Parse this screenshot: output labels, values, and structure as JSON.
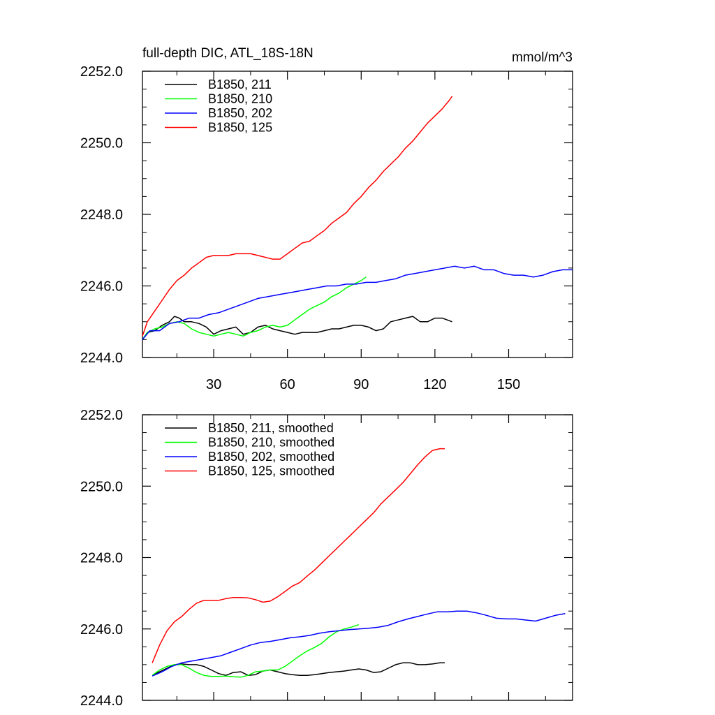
{
  "chart_data": [
    {
      "type": "line",
      "title": "full-depth DIC, ATL_18S-18N",
      "units": "mmol/m^3",
      "xlim": [
        1,
        176
      ],
      "ylim": [
        2244.0,
        2252.0
      ],
      "xticks": [
        30,
        60,
        90,
        120,
        150
      ],
      "xtick_labels": [
        "30",
        "60",
        "90",
        "120",
        "150"
      ],
      "yticks": [
        2244.0,
        2246.0,
        2248.0,
        2250.0,
        2252.0
      ],
      "ytick_labels": [
        "2244.0",
        "2246.0",
        "2248.0",
        "2250.0",
        "2252.0"
      ],
      "legend_position": "top-left",
      "series": [
        {
          "name": "B1850, 211",
          "color": "#000000",
          "x": [
            1,
            3,
            6,
            9,
            12,
            14,
            16,
            18,
            21,
            24,
            27,
            30,
            33,
            36,
            39,
            42,
            45,
            48,
            51,
            54,
            57,
            60,
            63,
            66,
            69,
            72,
            75,
            78,
            81,
            84,
            87,
            90,
            93,
            96,
            99,
            102,
            105,
            108,
            111,
            114,
            117,
            120,
            123,
            125,
            127
          ],
          "y": [
            2244.5,
            2244.7,
            2244.75,
            2244.9,
            2245.0,
            2245.15,
            2245.1,
            2245.0,
            2245.0,
            2244.95,
            2244.85,
            2244.65,
            2244.75,
            2244.8,
            2244.85,
            2244.65,
            2244.7,
            2244.85,
            2244.9,
            2244.8,
            2244.75,
            2244.7,
            2244.65,
            2244.7,
            2244.7,
            2244.7,
            2244.75,
            2244.8,
            2244.8,
            2244.85,
            2244.9,
            2244.9,
            2244.85,
            2244.75,
            2244.8,
            2245.0,
            2245.05,
            2245.1,
            2245.15,
            2245.0,
            2245.0,
            2245.1,
            2245.1,
            2245.05,
            2245.0
          ]
        },
        {
          "name": "B1850, 210",
          "color": "#00ff00",
          "x": [
            1,
            3,
            6,
            9,
            12,
            15,
            18,
            21,
            24,
            27,
            30,
            33,
            36,
            39,
            42,
            45,
            48,
            51,
            54,
            57,
            60,
            63,
            66,
            69,
            72,
            75,
            78,
            81,
            84,
            87,
            90,
            92
          ],
          "y": [
            2244.5,
            2244.7,
            2244.8,
            2244.85,
            2244.95,
            2245.0,
            2244.95,
            2244.8,
            2244.7,
            2244.65,
            2244.6,
            2244.65,
            2244.7,
            2244.65,
            2244.6,
            2244.7,
            2244.75,
            2244.85,
            2244.9,
            2244.85,
            2244.9,
            2245.05,
            2245.2,
            2245.35,
            2245.45,
            2245.55,
            2245.7,
            2245.8,
            2245.95,
            2246.05,
            2246.15,
            2246.25
          ]
        },
        {
          "name": "B1850, 202",
          "color": "#0000ff",
          "x": [
            1,
            4,
            8,
            12,
            16,
            20,
            24,
            28,
            32,
            36,
            40,
            44,
            48,
            52,
            56,
            60,
            64,
            68,
            72,
            76,
            80,
            84,
            88,
            92,
            96,
            100,
            104,
            108,
            112,
            116,
            120,
            124,
            128,
            132,
            136,
            140,
            144,
            148,
            152,
            156,
            160,
            164,
            168,
            172,
            176
          ],
          "y": [
            2244.5,
            2244.75,
            2244.75,
            2244.95,
            2245.0,
            2245.1,
            2245.1,
            2245.2,
            2245.25,
            2245.35,
            2245.45,
            2245.55,
            2245.65,
            2245.7,
            2245.75,
            2245.8,
            2245.85,
            2245.9,
            2245.95,
            2246.0,
            2246.0,
            2246.05,
            2246.05,
            2246.1,
            2246.1,
            2246.15,
            2246.2,
            2246.3,
            2246.35,
            2246.4,
            2246.45,
            2246.5,
            2246.55,
            2246.5,
            2246.55,
            2246.45,
            2246.45,
            2246.35,
            2246.3,
            2246.3,
            2246.25,
            2246.3,
            2246.4,
            2246.45,
            2246.45
          ]
        },
        {
          "name": "B1850, 125",
          "color": "#ff0000",
          "x": [
            1,
            3,
            6,
            9,
            12,
            15,
            18,
            21,
            24,
            27,
            30,
            33,
            36,
            39,
            42,
            45,
            48,
            51,
            54,
            57,
            60,
            63,
            66,
            69,
            72,
            75,
            78,
            81,
            84,
            87,
            90,
            93,
            96,
            99,
            102,
            105,
            108,
            111,
            114,
            117,
            120,
            123,
            126,
            127
          ],
          "y": [
            2244.6,
            2245.0,
            2245.3,
            2245.6,
            2245.9,
            2246.15,
            2246.3,
            2246.5,
            2246.65,
            2246.8,
            2246.85,
            2246.85,
            2246.85,
            2246.9,
            2246.9,
            2246.9,
            2246.85,
            2246.8,
            2246.75,
            2246.75,
            2246.9,
            2247.05,
            2247.2,
            2247.25,
            2247.4,
            2247.55,
            2247.75,
            2247.9,
            2248.05,
            2248.3,
            2248.5,
            2248.75,
            2248.95,
            2249.2,
            2249.4,
            2249.6,
            2249.85,
            2250.05,
            2250.3,
            2250.55,
            2250.75,
            2250.95,
            2251.2,
            2251.3
          ]
        }
      ]
    },
    {
      "type": "line",
      "title": "",
      "units": "",
      "xlim": [
        1,
        176
      ],
      "ylim": [
        2244.0,
        2252.0
      ],
      "xticks": [
        30,
        60,
        90,
        120,
        150
      ],
      "xtick_labels": [],
      "yticks": [
        2244.0,
        2246.0,
        2248.0,
        2250.0,
        2252.0
      ],
      "ytick_labels": [
        "2244.0",
        "2246.0",
        "2248.0",
        "2250.0",
        "2252.0"
      ],
      "legend_position": "top-left",
      "series": [
        {
          "name": "B1850, 211, smoothed",
          "color": "#000000",
          "x": [
            5,
            8,
            11,
            14,
            17,
            20,
            23,
            26,
            29,
            32,
            35,
            38,
            41,
            44,
            47,
            50,
            53,
            56,
            59,
            62,
            65,
            68,
            71,
            74,
            77,
            80,
            83,
            86,
            89,
            92,
            95,
            98,
            101,
            104,
            107,
            110,
            113,
            116,
            119,
            122,
            124
          ],
          "y": [
            2244.7,
            2244.8,
            2244.9,
            2245.0,
            2245.02,
            2245.0,
            2245.0,
            2244.95,
            2244.85,
            2244.75,
            2244.7,
            2244.78,
            2244.8,
            2244.7,
            2244.72,
            2244.82,
            2244.85,
            2244.8,
            2244.75,
            2244.72,
            2244.7,
            2244.7,
            2244.72,
            2244.75,
            2244.78,
            2244.8,
            2244.82,
            2244.85,
            2244.88,
            2244.85,
            2244.78,
            2244.8,
            2244.9,
            2245.0,
            2245.05,
            2245.05,
            2245.0,
            2245.0,
            2245.02,
            2245.05,
            2245.05
          ]
        },
        {
          "name": "B1850, 210, smoothed",
          "color": "#00ff00",
          "x": [
            5,
            8,
            11,
            14,
            17,
            20,
            23,
            26,
            29,
            32,
            35,
            38,
            41,
            44,
            47,
            50,
            53,
            56,
            59,
            62,
            65,
            68,
            71,
            74,
            77,
            80,
            83,
            86,
            89
          ],
          "y": [
            2244.7,
            2244.85,
            2244.95,
            2245.0,
            2245.0,
            2244.9,
            2244.78,
            2244.7,
            2244.67,
            2244.67,
            2244.68,
            2244.66,
            2244.65,
            2244.7,
            2244.8,
            2244.82,
            2244.85,
            2244.85,
            2244.95,
            2245.1,
            2245.25,
            2245.38,
            2245.48,
            2245.6,
            2245.78,
            2245.92,
            2246.0,
            2246.05,
            2246.12
          ]
        },
        {
          "name": "B1850, 202, smoothed",
          "color": "#0000ff",
          "x": [
            5,
            9,
            13,
            17,
            21,
            25,
            29,
            33,
            37,
            41,
            45,
            49,
            53,
            57,
            61,
            65,
            69,
            73,
            77,
            81,
            85,
            89,
            93,
            97,
            101,
            105,
            109,
            113,
            117,
            121,
            125,
            129,
            133,
            137,
            141,
            145,
            149,
            153,
            157,
            161,
            165,
            169,
            173
          ],
          "y": [
            2244.68,
            2244.8,
            2244.95,
            2245.05,
            2245.1,
            2245.15,
            2245.2,
            2245.25,
            2245.35,
            2245.45,
            2245.55,
            2245.62,
            2245.65,
            2245.7,
            2245.75,
            2245.78,
            2245.82,
            2245.88,
            2245.92,
            2245.95,
            2245.98,
            2246.0,
            2246.02,
            2246.05,
            2246.1,
            2246.2,
            2246.28,
            2246.35,
            2246.42,
            2246.48,
            2246.48,
            2246.5,
            2246.5,
            2246.45,
            2246.38,
            2246.3,
            2246.28,
            2246.28,
            2246.25,
            2246.22,
            2246.3,
            2246.38,
            2246.43
          ]
        },
        {
          "name": "B1850, 125, smoothed",
          "color": "#ff0000",
          "x": [
            5,
            8,
            11,
            14,
            17,
            20,
            23,
            26,
            29,
            32,
            35,
            38,
            41,
            44,
            47,
            50,
            53,
            56,
            59,
            62,
            65,
            68,
            71,
            74,
            77,
            80,
            83,
            86,
            89,
            92,
            95,
            98,
            101,
            104,
            107,
            110,
            113,
            116,
            119,
            122,
            124
          ],
          "y": [
            2245.05,
            2245.55,
            2245.95,
            2246.2,
            2246.35,
            2246.55,
            2246.72,
            2246.8,
            2246.8,
            2246.8,
            2246.85,
            2246.88,
            2246.88,
            2246.87,
            2246.82,
            2246.75,
            2246.78,
            2246.9,
            2247.05,
            2247.2,
            2247.3,
            2247.48,
            2247.65,
            2247.85,
            2248.05,
            2248.25,
            2248.45,
            2248.65,
            2248.85,
            2249.05,
            2249.25,
            2249.5,
            2249.7,
            2249.9,
            2250.1,
            2250.35,
            2250.6,
            2250.82,
            2251.0,
            2251.05,
            2251.05
          ]
        }
      ]
    }
  ]
}
